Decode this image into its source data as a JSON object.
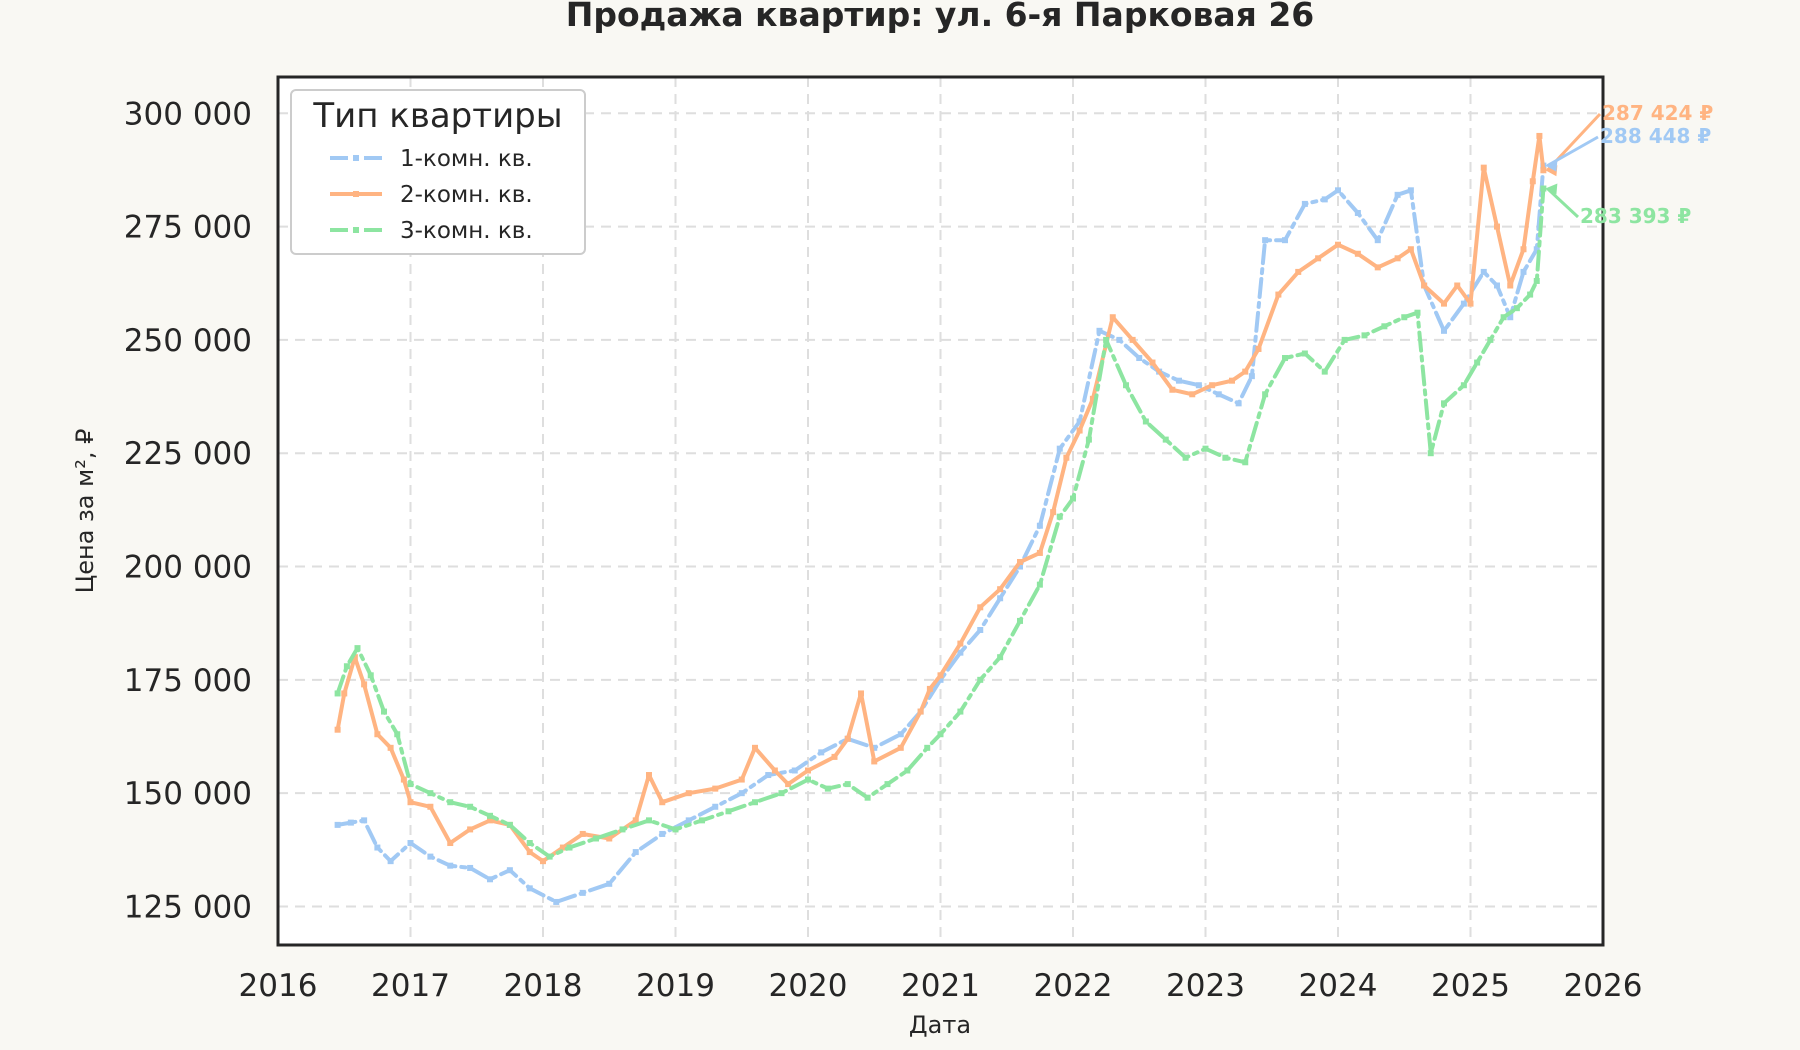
{
  "chart_data": {
    "type": "line",
    "title": "Продажа квартир: ул. 6-я Парковая 26",
    "xlabel": "Дата",
    "ylabel": "Цена за м², ₽",
    "xlim": [
      2016.0,
      2026.0
    ],
    "ylim": [
      116500,
      308000
    ],
    "x_ticks": [
      2016,
      2017,
      2018,
      2019,
      2020,
      2021,
      2022,
      2023,
      2024,
      2025,
      2026
    ],
    "x_tick_labels": [
      "2016",
      "2017",
      "2018",
      "2019",
      "2020",
      "2021",
      "2022",
      "2023",
      "2024",
      "2025",
      "2026"
    ],
    "y_ticks": [
      125000,
      150000,
      175000,
      200000,
      225000,
      250000,
      275000,
      300000
    ],
    "y_tick_labels": [
      "125 000",
      "150 000",
      "175 000",
      "200 000",
      "225 000",
      "250 000",
      "275 000",
      "300 000"
    ],
    "grid": true,
    "legend": {
      "title": "Тип квартиры",
      "placement": "top-left",
      "entries": [
        "1-комн. кв.",
        "2-комн. кв.",
        "3-комн. кв."
      ]
    },
    "series": [
      {
        "name": "1-комн. кв.",
        "color": "#a1c9f4",
        "dash": "dashdot",
        "x": [
          2016.45,
          2016.55,
          2016.65,
          2016.75,
          2016.85,
          2017.0,
          2017.15,
          2017.3,
          2017.45,
          2017.6,
          2017.75,
          2017.9,
          2018.1,
          2018.3,
          2018.5,
          2018.7,
          2018.9,
          2019.1,
          2019.3,
          2019.5,
          2019.7,
          2019.9,
          2020.1,
          2020.3,
          2020.5,
          2020.7,
          2020.85,
          2021.0,
          2021.15,
          2021.3,
          2021.45,
          2021.6,
          2021.75,
          2021.9,
          2022.05,
          2022.2,
          2022.35,
          2022.5,
          2022.65,
          2022.8,
          2022.95,
          2023.1,
          2023.25,
          2023.35,
          2023.45,
          2023.6,
          2023.75,
          2023.9,
          2024.0,
          2024.15,
          2024.3,
          2024.45,
          2024.55,
          2024.65,
          2024.8,
          2024.95,
          2025.1,
          2025.2,
          2025.3,
          2025.4,
          2025.5,
          2025.55
        ],
        "y": [
          143000,
          143500,
          144000,
          138000,
          135000,
          139000,
          136000,
          134000,
          133500,
          131000,
          133000,
          129000,
          126000,
          128000,
          130000,
          137000,
          141000,
          144000,
          147000,
          150000,
          154000,
          155000,
          159000,
          162000,
          160000,
          163000,
          168000,
          175000,
          181000,
          186000,
          193000,
          200000,
          209000,
          226000,
          232000,
          252000,
          250000,
          246000,
          243000,
          241000,
          240000,
          238000,
          236000,
          242000,
          272000,
          272000,
          280000,
          281000,
          283000,
          278000,
          272000,
          282000,
          283000,
          262000,
          252000,
          258000,
          265000,
          262000,
          255000,
          265000,
          270000,
          288448
        ]
      },
      {
        "name": "2-комн. кв.",
        "color": "#ffb482",
        "dash": "solid",
        "x": [
          2016.45,
          2016.5,
          2016.58,
          2016.65,
          2016.75,
          2016.85,
          2016.95,
          2017.0,
          2017.15,
          2017.3,
          2017.45,
          2017.6,
          2017.75,
          2017.9,
          2018.0,
          2018.15,
          2018.3,
          2018.5,
          2018.7,
          2018.8,
          2018.9,
          2019.1,
          2019.3,
          2019.5,
          2019.6,
          2019.75,
          2019.85,
          2020.0,
          2020.2,
          2020.3,
          2020.4,
          2020.5,
          2020.7,
          2020.85,
          2020.92,
          2021.0,
          2021.15,
          2021.3,
          2021.45,
          2021.6,
          2021.75,
          2021.85,
          2021.95,
          2022.05,
          2022.15,
          2022.3,
          2022.45,
          2022.6,
          2022.75,
          2022.9,
          2023.05,
          2023.2,
          2023.3,
          2023.4,
          2023.55,
          2023.7,
          2023.85,
          2024.0,
          2024.15,
          2024.3,
          2024.45,
          2024.55,
          2024.65,
          2024.8,
          2024.9,
          2025.0,
          2025.1,
          2025.2,
          2025.3,
          2025.4,
          2025.47,
          2025.52,
          2025.55
        ],
        "y": [
          164000,
          172000,
          180000,
          174000,
          163000,
          160000,
          153000,
          148000,
          147000,
          139000,
          142000,
          144000,
          143000,
          137000,
          135000,
          138000,
          141000,
          140000,
          144000,
          154000,
          148000,
          150000,
          151000,
          153000,
          160000,
          155000,
          152000,
          155000,
          158000,
          162000,
          172000,
          157000,
          160000,
          168000,
          173000,
          176000,
          183000,
          191000,
          195000,
          201000,
          203000,
          212000,
          224000,
          230000,
          237000,
          255000,
          250000,
          245000,
          239000,
          238000,
          240000,
          241000,
          243000,
          248000,
          260000,
          265000,
          268000,
          271000,
          269000,
          266000,
          268000,
          270000,
          262000,
          258000,
          262000,
          258000,
          288000,
          275000,
          262000,
          270000,
          285000,
          295000,
          287424
        ]
      },
      {
        "name": "3-комн. кв.",
        "color": "#8de5a1",
        "dash": "dashdot",
        "x": [
          2016.45,
          2016.52,
          2016.6,
          2016.7,
          2016.8,
          2016.9,
          2017.0,
          2017.15,
          2017.3,
          2017.45,
          2017.6,
          2017.75,
          2017.9,
          2018.05,
          2018.2,
          2018.4,
          2018.6,
          2018.8,
          2019.0,
          2019.2,
          2019.4,
          2019.6,
          2019.8,
          2020.0,
          2020.15,
          2020.3,
          2020.45,
          2020.6,
          2020.75,
          2020.9,
          2021.0,
          2021.15,
          2021.3,
          2021.45,
          2021.6,
          2021.75,
          2021.9,
          2022.0,
          2022.12,
          2022.25,
          2022.4,
          2022.55,
          2022.7,
          2022.85,
          2023.0,
          2023.15,
          2023.3,
          2023.45,
          2023.6,
          2023.75,
          2023.9,
          2024.05,
          2024.2,
          2024.35,
          2024.5,
          2024.6,
          2024.7,
          2024.8,
          2024.95,
          2025.05,
          2025.15,
          2025.25,
          2025.35,
          2025.45,
          2025.5,
          2025.55
        ],
        "y": [
          172000,
          178000,
          182000,
          176000,
          168000,
          163000,
          152000,
          150000,
          148000,
          147000,
          145000,
          143000,
          139000,
          136000,
          138000,
          140000,
          142000,
          144000,
          142000,
          144000,
          146000,
          148000,
          150000,
          153000,
          151000,
          152000,
          149000,
          152000,
          155000,
          160000,
          163000,
          168000,
          175000,
          180000,
          188000,
          196000,
          211000,
          215000,
          228000,
          250000,
          240000,
          232000,
          228000,
          224000,
          226000,
          224000,
          223000,
          238000,
          246000,
          247000,
          243000,
          250000,
          251000,
          253000,
          255000,
          256000,
          225000,
          236000,
          240000,
          245000,
          250000,
          255000,
          257000,
          260000,
          263000,
          283393
        ]
      }
    ],
    "end_labels": [
      {
        "series": "2-комн. кв.",
        "text": "287 424 ₽",
        "color": "#ffb482"
      },
      {
        "series": "1-комн. кв.",
        "text": "288 448 ₽",
        "color": "#a1c9f4"
      },
      {
        "series": "3-комн. кв.",
        "text": "283 393 ₽",
        "color": "#8de5a1"
      }
    ]
  }
}
